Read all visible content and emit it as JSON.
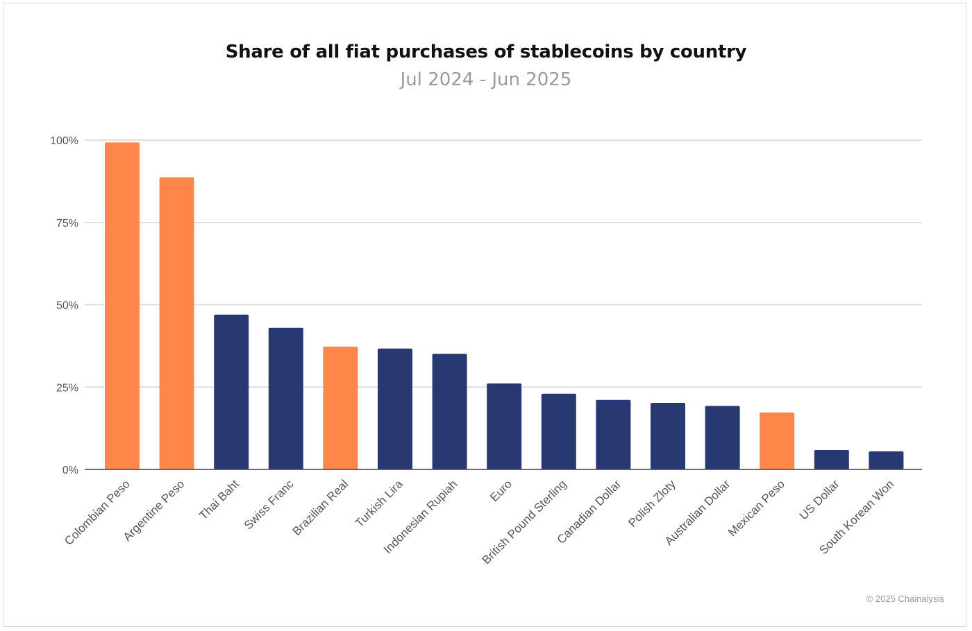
{
  "chart_data": {
    "type": "bar",
    "title": "Share of all fiat purchases of stablecoins by country",
    "subtitle": "Jul 2024 - Jun 2025",
    "xlabel": "",
    "ylabel": "",
    "ylim": [
      0,
      100
    ],
    "yticks": [
      "0%",
      "25%",
      "50%",
      "75%",
      "100%"
    ],
    "ytick_values": [
      0,
      25,
      50,
      75,
      100
    ],
    "grid": true,
    "legend": "none",
    "categories": [
      "Colombian Peso",
      "Argentine Peso",
      "Thai Baht",
      "Swiss Franc",
      "Brazilian Real",
      "Turkish Lira",
      "Indonesian Rupiah",
      "Euro",
      "British Pound Sterling",
      "Canadian Dollar",
      "Polish Zloty",
      "Australian Dollar",
      "Mexican Peso",
      "US Dollar",
      "South Korean Won"
    ],
    "values": [
      99.3,
      88.7,
      47.0,
      43.0,
      37.3,
      36.7,
      35.1,
      26.1,
      23.0,
      21.1,
      20.2,
      19.3,
      17.3,
      5.9,
      5.5
    ],
    "highlight": [
      true,
      true,
      false,
      false,
      true,
      false,
      false,
      false,
      false,
      false,
      false,
      false,
      true,
      false,
      false
    ],
    "colors": {
      "highlight": "#ff8649",
      "default": "#283870",
      "grid": "#d6d6d6",
      "axis": "#555555"
    }
  },
  "footer": {
    "copyright": "© 2025 Chainalysis"
  }
}
